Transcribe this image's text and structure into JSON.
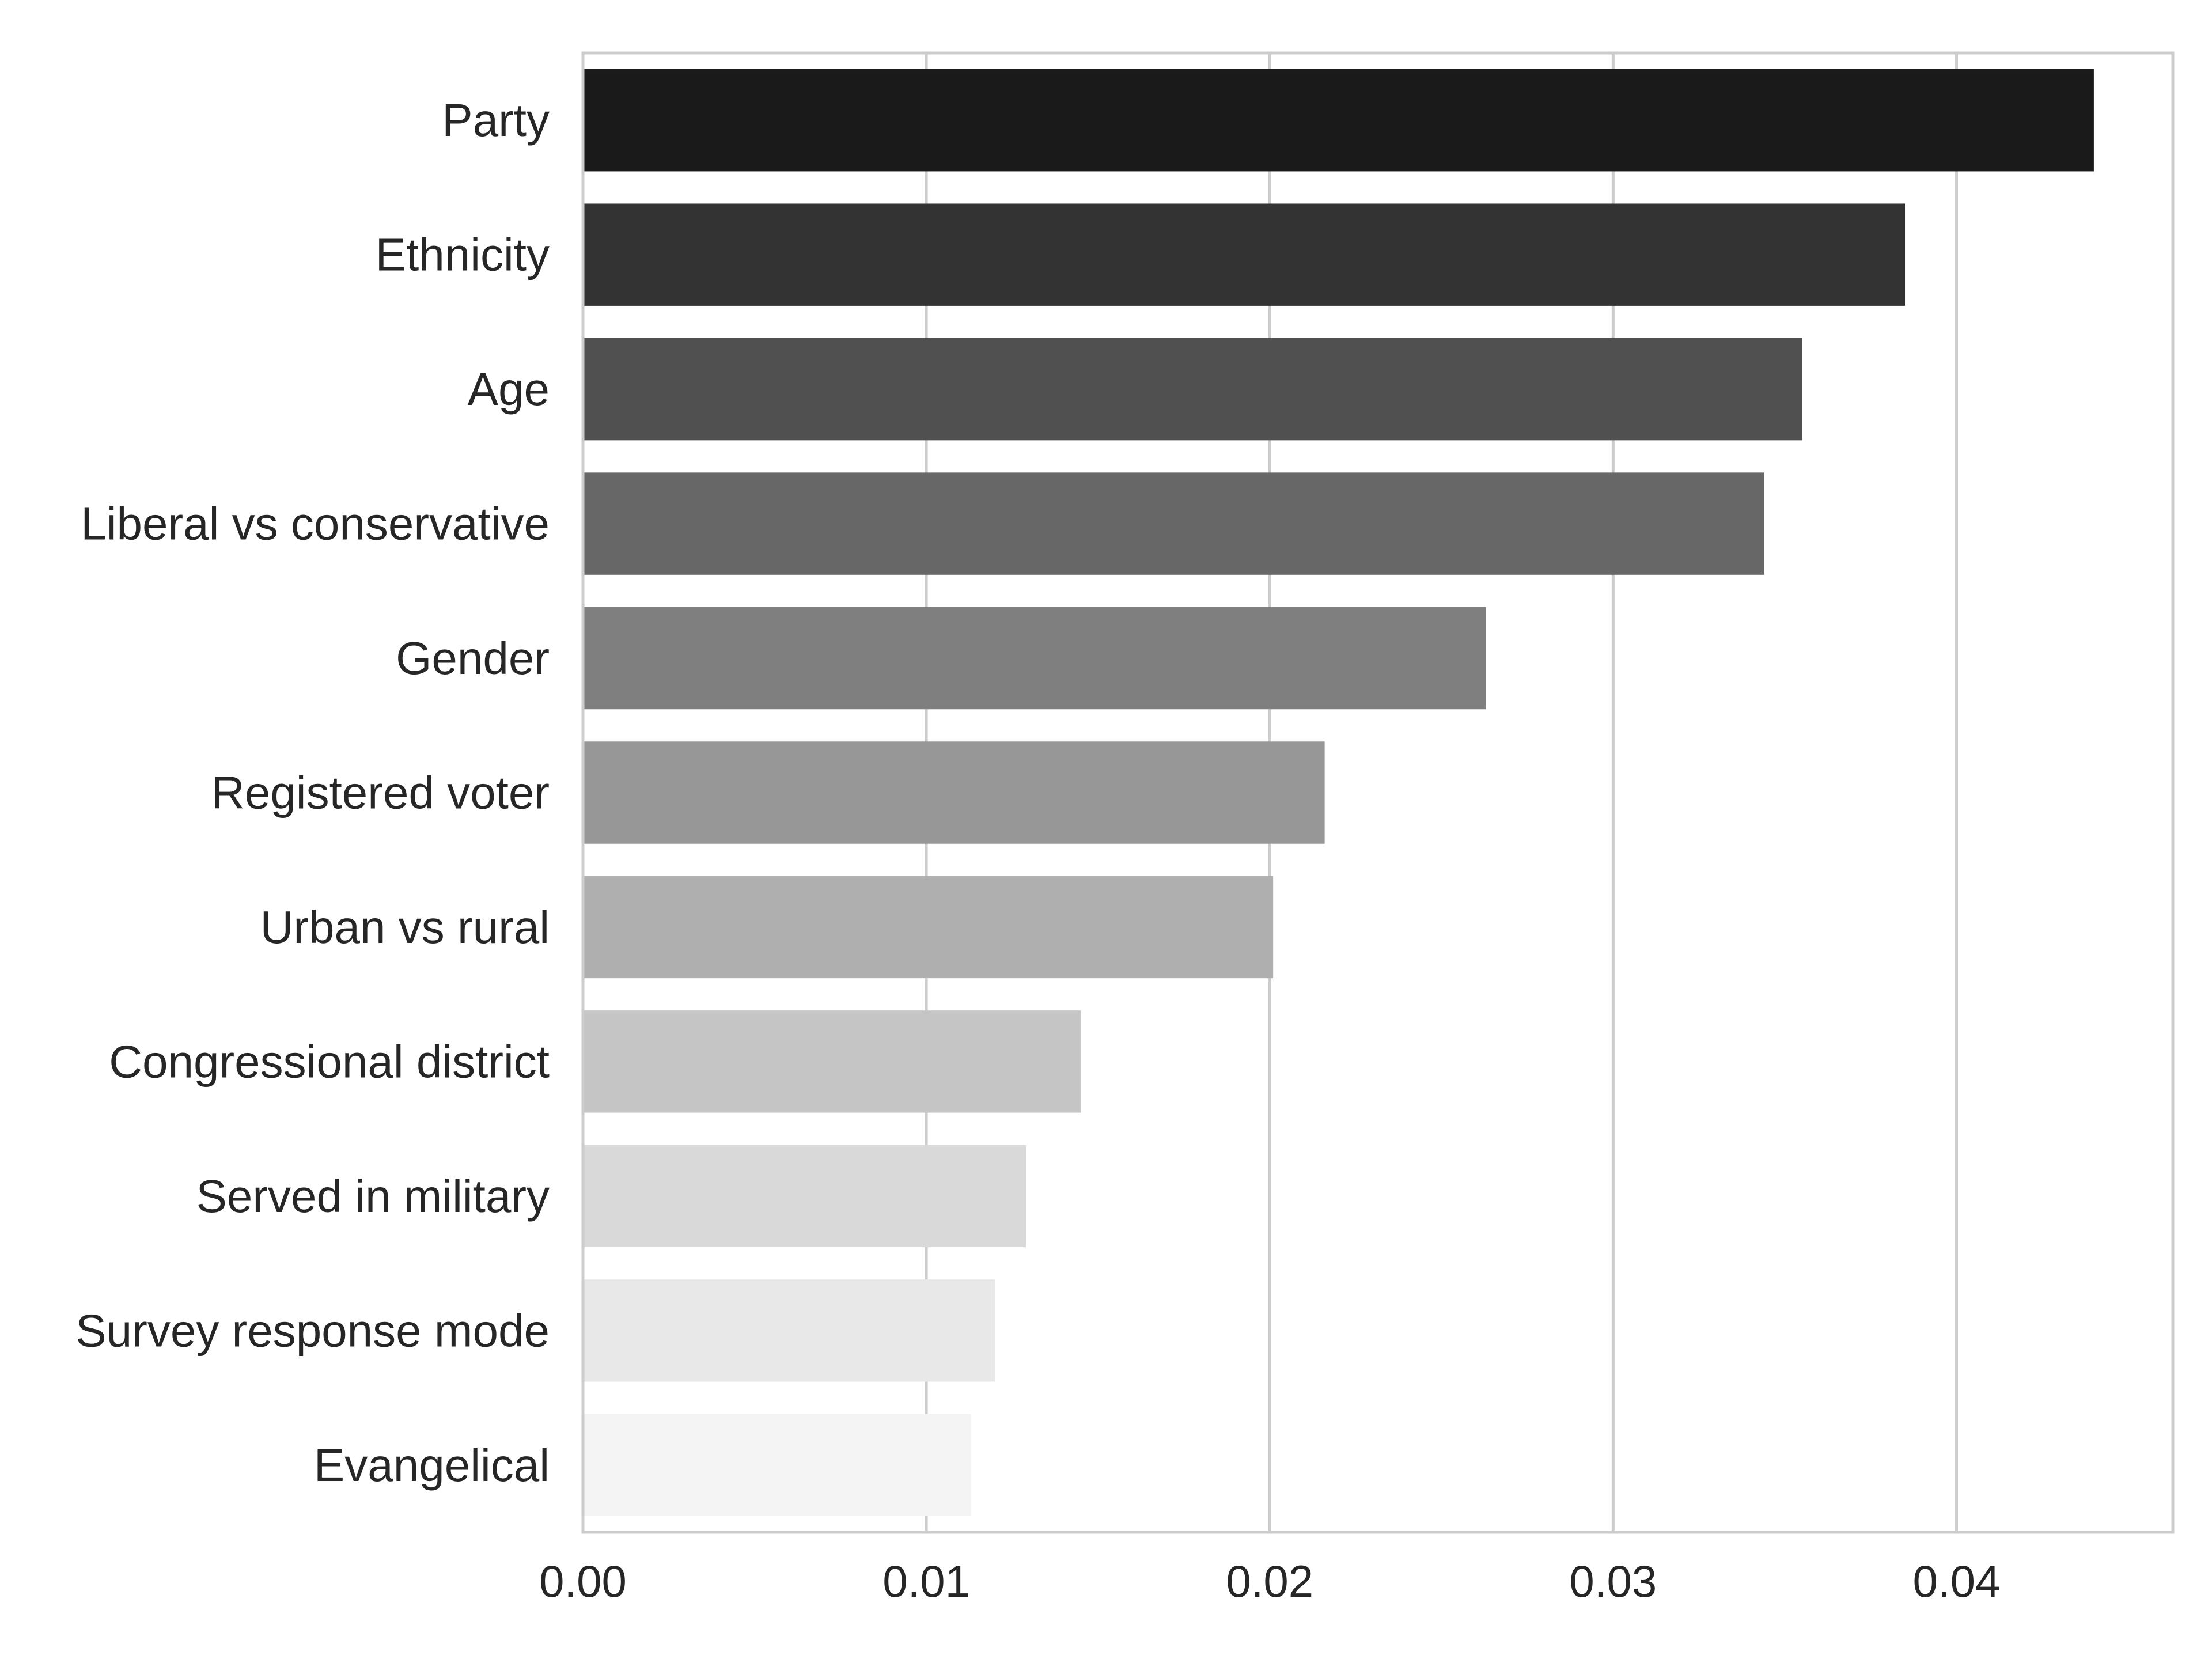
{
  "chart_data": {
    "type": "bar",
    "orientation": "horizontal",
    "title": "",
    "xlabel": "",
    "ylabel": "",
    "categories": [
      "Party",
      "Ethnicity",
      "Age",
      "Liberal vs conservative",
      "Gender",
      "Registered voter",
      "Urban vs rural",
      "Congressional district",
      "Served in military",
      "Survey response mode",
      "Evangelical"
    ],
    "values": [
      0.044,
      0.0385,
      0.0355,
      0.0344,
      0.0263,
      0.0216,
      0.0201,
      0.0145,
      0.0129,
      0.012,
      0.0113
    ],
    "colors": [
      "#1a1a1a",
      "#333333",
      "#505050",
      "#676767",
      "#7f7f7f",
      "#979797",
      "#afafaf",
      "#c5c5c5",
      "#d9d9d9",
      "#e8e8e8",
      "#f4f4f4"
    ],
    "xlim": [
      0,
      0.0463
    ],
    "xticks": [
      0.0,
      0.01,
      0.02,
      0.03,
      0.04
    ],
    "xtick_labels": [
      "0.00",
      "0.01",
      "0.02",
      "0.03",
      "0.04"
    ],
    "grid": "vertical",
    "legend": "none"
  }
}
